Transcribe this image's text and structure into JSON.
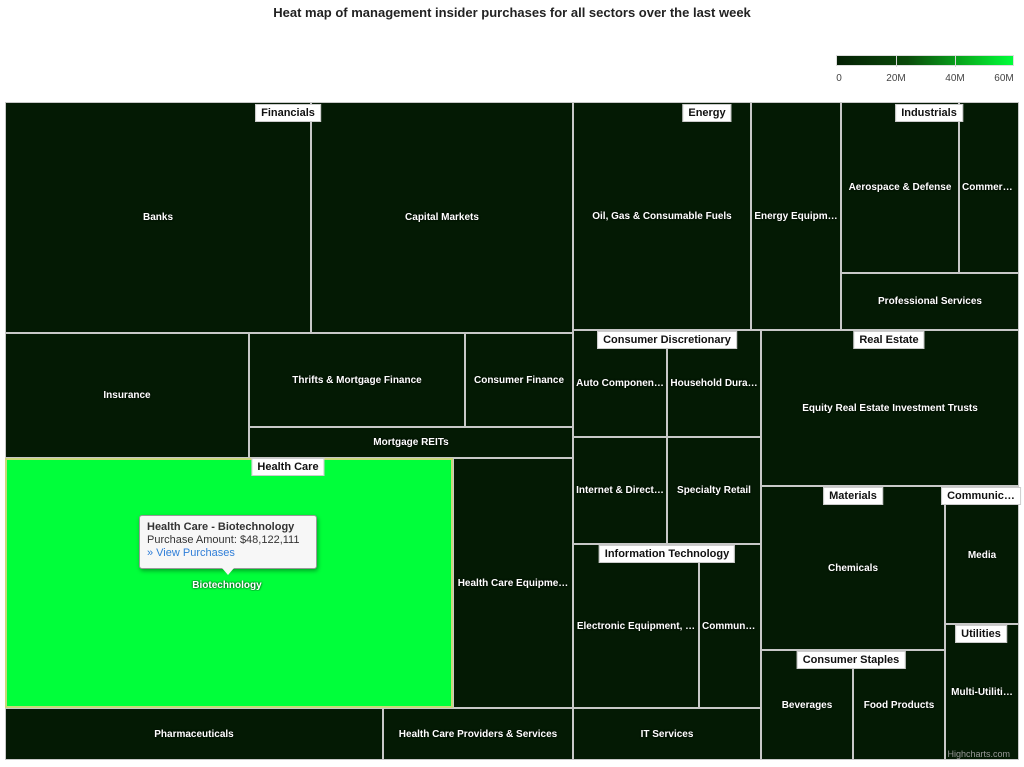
{
  "chart_data": {
    "type": "heatmap",
    "subtype": "treemap",
    "title": "Heat map of management insider purchases for all sectors over the last week",
    "color_axis": {
      "min": 0,
      "max": 60000000,
      "tick_labels": [
        "0",
        "20M",
        "40M",
        "60M"
      ],
      "min_color": "#041f04",
      "max_color": "#00ff3a"
    },
    "sectors": [
      {
        "name": "Financials",
        "industries": [
          "Banks",
          "Capital Markets",
          "Insurance",
          "Thrifts & Mortgage Finance",
          "Consumer Finance",
          "Mortgage REITs"
        ]
      },
      {
        "name": "Health Care",
        "industries": [
          "Biotechnology",
          "Health Care Equipme…",
          "Pharmaceuticals",
          "Health Care Providers & Services"
        ]
      },
      {
        "name": "Energy",
        "industries": [
          "Oil, Gas & Consumable Fuels",
          "Energy Equipm…"
        ]
      },
      {
        "name": "Industrials",
        "industries": [
          "Aerospace & Defense",
          "Commerc…",
          "Professional Services"
        ]
      },
      {
        "name": "Consumer Discretionary",
        "industries": [
          "Auto Componen…",
          "Household Dura…",
          "Internet & Direct…",
          "Specialty Retail"
        ]
      },
      {
        "name": "Real Estate",
        "industries": [
          "Equity Real Estate Investment Trusts"
        ]
      },
      {
        "name": "Information Technology",
        "industries": [
          "Electronic Equipment, …",
          "Communi…",
          "IT Services"
        ]
      },
      {
        "name": "Materials",
        "industries": [
          "Chemicals"
        ]
      },
      {
        "name": "Communic…",
        "industries": [
          "Media"
        ]
      },
      {
        "name": "Utilities",
        "industries": [
          "Multi-Utiliti…"
        ]
      },
      {
        "name": "Consumer Staples",
        "industries": [
          "Beverages",
          "Food Products"
        ]
      }
    ],
    "highlighted": {
      "sector": "Health Care",
      "industry": "Biotechnology",
      "value": 48122111
    }
  },
  "tooltip": {
    "title": "Health Care - Biotechnology",
    "amount_text": "Purchase Amount: $48,122,111",
    "link": "» View Purchases"
  },
  "credits": "Highcharts.com",
  "colors": {
    "cell_dark": "#041a04",
    "highlight": "#00ff3a",
    "border": "#c8c8c8"
  }
}
